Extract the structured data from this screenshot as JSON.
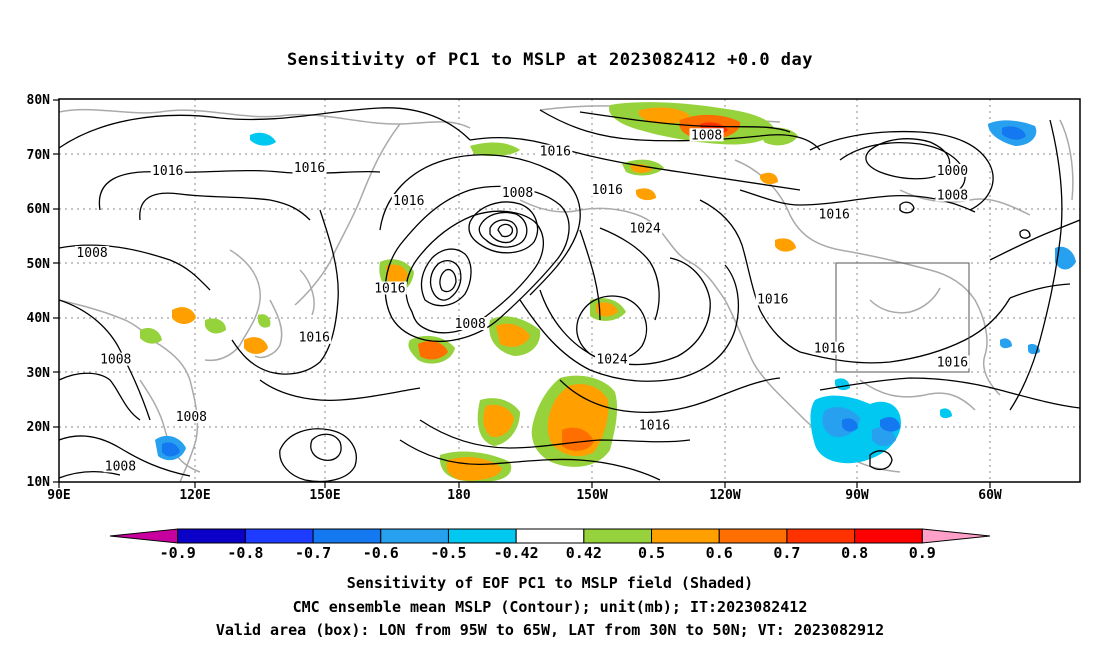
{
  "title": "Sensitivity of PC1 to MSLP at 2023082412 +0.0 day",
  "lat_labels": [
    "80N",
    "70N",
    "60N",
    "50N",
    "40N",
    "30N",
    "20N",
    "10N"
  ],
  "lon_labels": [
    "90E",
    "120E",
    "150E",
    "180",
    "150W",
    "120W",
    "90W",
    "60W"
  ],
  "colorbar": {
    "labels": [
      "-0.9",
      "-0.8",
      "-0.7",
      "-0.6",
      "-0.5",
      "-0.42",
      "0.42",
      "0.5",
      "0.6",
      "0.7",
      "0.8",
      "0.9"
    ],
    "colors": [
      "#c800a0",
      "#0a00c8",
      "#1e3cff",
      "#1478f0",
      "#28a0f0",
      "#00c8f0",
      "#ffffff",
      "#96d23c",
      "#ffa000",
      "#ff6e00",
      "#ff3200",
      "#ff0000",
      "#ffa0c8"
    ]
  },
  "contour_labels": [
    {
      "text": "1016",
      "lon": 113,
      "lat": 66.5
    },
    {
      "text": "1016",
      "lon": 143,
      "lat": 67
    },
    {
      "text": "1008",
      "lon": 97,
      "lat": 51.5
    },
    {
      "text": "1016",
      "lon": 164,
      "lat": 61
    },
    {
      "text": "1016",
      "lon": 160,
      "lat": 45
    },
    {
      "text": "1016",
      "lon": 144,
      "lat": 36
    },
    {
      "text": "1008",
      "lon": 102,
      "lat": 32
    },
    {
      "text": "1008",
      "lon": 118,
      "lat": 21.5
    },
    {
      "text": "1008",
      "lon": 103,
      "lat": 12.5
    },
    {
      "text": "1008",
      "lon": 187,
      "lat": 62.5
    },
    {
      "text": "1016",
      "lon": 206,
      "lat": 63
    },
    {
      "text": "1016",
      "lon": 195,
      "lat": 70
    },
    {
      "text": "1008",
      "lon": 227,
      "lat": 73
    },
    {
      "text": "1024",
      "lon": 214,
      "lat": 56
    },
    {
      "text": "1008",
      "lon": 177,
      "lat": 38.5
    },
    {
      "text": "1024",
      "lon": 207,
      "lat": 32
    },
    {
      "text": "1016",
      "lon": 216,
      "lat": 20
    },
    {
      "text": "1016",
      "lon": 241,
      "lat": 43
    },
    {
      "text": "1016",
      "lon": 254,
      "lat": 58.5
    },
    {
      "text": "1016",
      "lon": 253,
      "lat": 34
    },
    {
      "text": "1000",
      "lon": 279,
      "lat": 66.5
    },
    {
      "text": "1008",
      "lon": 279,
      "lat": 62
    },
    {
      "text": "1016",
      "lon": 279,
      "lat": 31.5
    }
  ],
  "captions": [
    "Sensitivity of EOF PC1 to MSLP field (Shaded)",
    "CMC ensemble mean MSLP (Contour); unit(mb); IT:2023082412",
    "Valid area (box): LON from 95W to 65W, LAT from 30N to 50N; VT: 2023082912"
  ]
}
